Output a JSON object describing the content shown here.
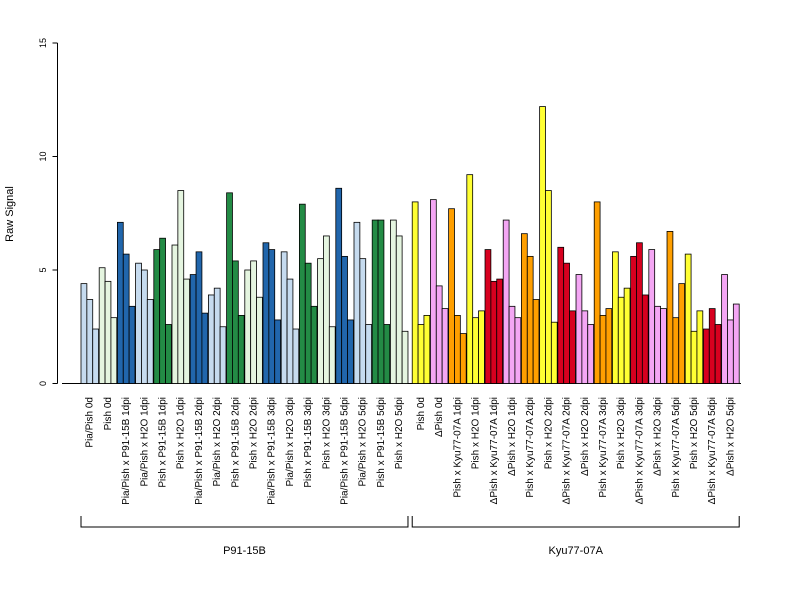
{
  "chart_data": {
    "type": "bar",
    "ylabel": "Raw Signal",
    "ylim": [
      0,
      15
    ],
    "yticks": [
      0,
      5,
      10,
      15
    ],
    "grid": false,
    "legend": "none",
    "groups": [
      {
        "label": "P91-15B",
        "categories": [
          {
            "label": "Pia/Pish 0d",
            "color": "#c6dbef",
            "values": [
              4.4,
              3.7,
              2.4
            ]
          },
          {
            "label": "Pish 0d",
            "color": "#e5f5e0",
            "values": [
              5.1,
              4.5,
              2.9
            ]
          },
          {
            "label": "Pia/Pish x P91-15B 1dpi",
            "color": "#2166ac",
            "values": [
              7.1,
              5.7,
              3.4
            ]
          },
          {
            "label": "Pia/Pish x H2O 1dpi",
            "color": "#c6dbef",
            "values": [
              5.3,
              5.0,
              3.7
            ]
          },
          {
            "label": "Pish x P91-15B 1dpi",
            "color": "#238b45",
            "values": [
              5.9,
              6.4,
              2.6
            ]
          },
          {
            "label": "Pish x H2O 1dpi",
            "color": "#e5f5e0",
            "values": [
              6.1,
              8.5,
              4.6
            ]
          },
          {
            "label": "Pia/Pish x P91-15B 2dpi",
            "color": "#2166ac",
            "values": [
              4.8,
              5.8,
              3.1
            ]
          },
          {
            "label": "Pia/Pish x H2O 2dpi",
            "color": "#c6dbef",
            "values": [
              3.9,
              4.2,
              2.5
            ]
          },
          {
            "label": "Pish x P91-15B 2dpi",
            "color": "#238b45",
            "values": [
              8.4,
              5.4,
              3.0
            ]
          },
          {
            "label": "Pish x H2O 2dpi",
            "color": "#e5f5e0",
            "values": [
              5.0,
              5.4,
              3.8
            ]
          },
          {
            "label": "Pia/Pish x P91-15B 3dpi",
            "color": "#2166ac",
            "values": [
              6.2,
              5.9,
              2.8
            ]
          },
          {
            "label": "Pia/Pish x H2O 3dpi",
            "color": "#c6dbef",
            "values": [
              5.8,
              4.6,
              2.4
            ]
          },
          {
            "label": "Pish x P91-15B 3dpi",
            "color": "#238b45",
            "values": [
              7.9,
              5.3,
              3.4
            ]
          },
          {
            "label": "Pish x H2O 3dpi",
            "color": "#e5f5e0",
            "values": [
              5.5,
              6.5,
              2.5
            ]
          },
          {
            "label": "Pia/Pish x P91-15B 5dpi",
            "color": "#2166ac",
            "values": [
              8.6,
              5.6,
              2.8
            ]
          },
          {
            "label": "Pia/Pish x H2O 5dpi",
            "color": "#c6dbef",
            "values": [
              7.1,
              5.5,
              2.6
            ]
          },
          {
            "label": "Pish x P91-15B 5dpi",
            "color": "#238b45",
            "values": [
              7.2,
              7.2,
              2.6
            ]
          },
          {
            "label": "Pish x H2O 5dpi",
            "color": "#e5f5e0",
            "values": [
              7.2,
              6.5,
              2.3
            ]
          }
        ]
      },
      {
        "label": "Kyu77-07A",
        "categories": [
          {
            "label": "Pish 0d",
            "color": "#ffff33",
            "values": [
              8.0,
              2.6,
              3.0
            ]
          },
          {
            "label": "ΔPish 0d",
            "color": "#f4a6f4",
            "values": [
              8.1,
              4.3,
              3.3
            ]
          },
          {
            "label": "Pish x Kyu77-07A 1dpi",
            "color": "#ff9f00",
            "values": [
              7.7,
              3.0,
              2.2
            ]
          },
          {
            "label": "Pish x H2O 1dpi",
            "color": "#ffff33",
            "values": [
              9.2,
              2.9,
              3.2
            ]
          },
          {
            "label": "ΔPish x Kyu77-07A 1dpi",
            "color": "#d7001f",
            "values": [
              5.9,
              4.5,
              4.6
            ]
          },
          {
            "label": "ΔPish x H2O 1dpi",
            "color": "#f4a6f4",
            "values": [
              7.2,
              3.4,
              2.9
            ]
          },
          {
            "label": "Pish x Kyu77-07A 2dpi",
            "color": "#ff9f00",
            "values": [
              6.6,
              5.6,
              3.7
            ]
          },
          {
            "label": "Pish x H2O 2dpi",
            "color": "#ffff33",
            "values": [
              12.2,
              8.5,
              2.7
            ]
          },
          {
            "label": "ΔPish x Kyu77-07A 2dpi",
            "color": "#d7001f",
            "values": [
              6.0,
              5.3,
              3.2
            ]
          },
          {
            "label": "ΔPish x H2O 2dpi",
            "color": "#f4a6f4",
            "values": [
              4.8,
              3.2,
              2.6
            ]
          },
          {
            "label": "Pish x Kyu77-07A 3dpi",
            "color": "#ff9f00",
            "values": [
              8.0,
              3.0,
              3.3
            ]
          },
          {
            "label": "Pish x H2O 3dpi",
            "color": "#ffff33",
            "values": [
              5.8,
              3.8,
              4.2
            ]
          },
          {
            "label": "ΔPish x Kyu77-07A 3dpi",
            "color": "#d7001f",
            "values": [
              5.6,
              6.2,
              3.9
            ]
          },
          {
            "label": "ΔPish x H2O 3dpi",
            "color": "#f4a6f4",
            "values": [
              5.9,
              3.4,
              3.3
            ]
          },
          {
            "label": "Pish x Kyu77-07A 5dpi",
            "color": "#ff9f00",
            "values": [
              6.7,
              2.9,
              4.4
            ]
          },
          {
            "label": "Pish x H2O 5dpi",
            "color": "#ffff33",
            "values": [
              5.7,
              2.3,
              3.2
            ]
          },
          {
            "label": "ΔPish x Kyu77-07A 5dpi",
            "color": "#d7001f",
            "values": [
              2.4,
              3.3,
              2.6
            ]
          },
          {
            "label": "ΔPish x H2O 5dpi",
            "color": "#f4a6f4",
            "values": [
              4.8,
              2.8,
              3.5
            ]
          }
        ]
      }
    ]
  }
}
